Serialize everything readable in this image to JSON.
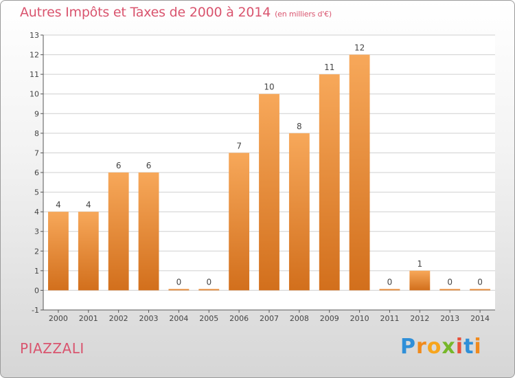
{
  "header": {
    "title": "Autres Impôts et Taxes de 2000 à 2014",
    "unit": "(en milliers d'€)"
  },
  "footer": {
    "commune": "PIAZZALI",
    "logo": "Proxiti"
  },
  "colors": {
    "bar_top": "#f7a85a",
    "bar_bottom": "#d26f1c",
    "title": "#d9546e",
    "axis": "#555555",
    "grid": "#cfcfcf"
  },
  "chart_data": {
    "type": "bar",
    "title": "Autres Impôts et Taxes de 2000 à 2014",
    "subtitle": "(en milliers d'€)",
    "categories": [
      "2000",
      "2001",
      "2002",
      "2003",
      "2004",
      "2005",
      "2006",
      "2007",
      "2008",
      "2009",
      "2010",
      "2011",
      "2012",
      "2013",
      "2014"
    ],
    "values": [
      4,
      4,
      6,
      6,
      0,
      0,
      7,
      10,
      8,
      11,
      12,
      0,
      1,
      0,
      0
    ],
    "ylim": [
      -1,
      13
    ],
    "yticks": [
      -1,
      0,
      1,
      2,
      3,
      4,
      5,
      6,
      7,
      8,
      9,
      10,
      11,
      12,
      13
    ],
    "grid": true,
    "legend": "none"
  }
}
